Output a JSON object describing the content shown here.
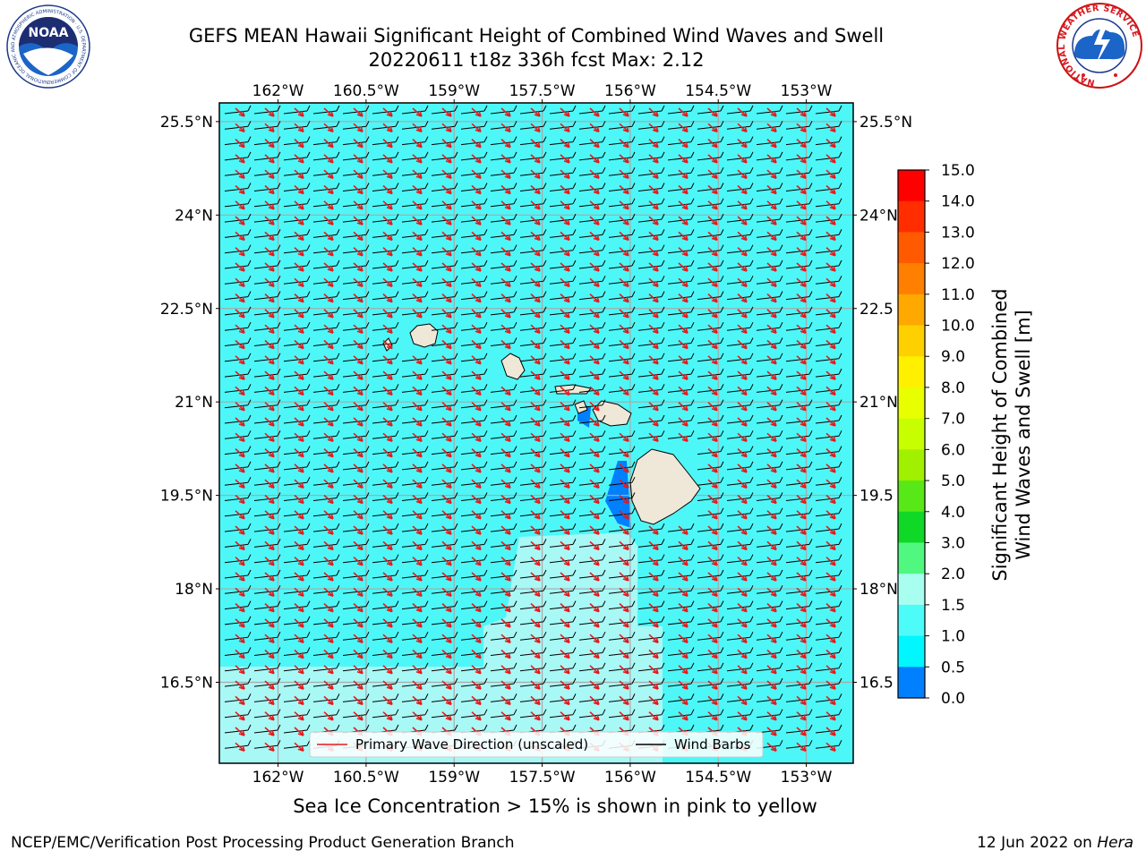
{
  "title": {
    "line1": "GEFS MEAN Hawaii Significant Height of Combined Wind Waves and Swell",
    "line2": "20220611 t18z 336h fcst   Max: 2.12"
  },
  "map": {
    "lon_ticks": [
      "162°W",
      "160.5°W",
      "159°W",
      "157.5°W",
      "156°W",
      "154.5°W",
      "153°W"
    ],
    "lat_ticks": [
      "25.5°N",
      "24°N",
      "22.5°N",
      "21°N",
      "19.5°N",
      "18°N",
      "16.5°N"
    ],
    "lat_ticks_right": [
      "25.5°N",
      "24°N",
      "22.5",
      "21°N",
      "19.5",
      "18°N",
      "16.5"
    ],
    "lon_range": [
      -163,
      -152.2
    ],
    "lat_range": [
      15.2,
      25.8
    ],
    "colors": {
      "ocean_fill": "#4df7f7",
      "calm_fill": "#a8f8f6",
      "land": "#efe8d8",
      "wave_direction": "#e41a1c",
      "wind_barb": "#000000",
      "gridline": "#a9a9a9"
    }
  },
  "legend": {
    "wave_label": "Primary Wave Direction (unscaled)",
    "barb_label": "Wind Barbs"
  },
  "colorbar": {
    "label_line1": "Significant Height of Combined",
    "label_line2": "Wind Waves and Swell [m]",
    "ticks": [
      "15.0",
      "14.0",
      "13.0",
      "12.0",
      "11.0",
      "10.0",
      "9.0",
      "8.0",
      "7.0",
      "6.0",
      "5.0",
      "4.0",
      "3.0",
      "2.0",
      "1.5",
      "1.0",
      "0.5",
      "0.0"
    ],
    "colors": [
      "#ff0000",
      "#ff2d00",
      "#ff5a00",
      "#ff8000",
      "#ffa800",
      "#ffd000",
      "#fff000",
      "#e8ff00",
      "#c8ff00",
      "#a0f000",
      "#58e818",
      "#10d826",
      "#50f880",
      "#a8fff0",
      "#4dfcf8",
      "#00f7ff",
      "#0080ff",
      "#0000ff"
    ]
  },
  "logos": {
    "noaa_text": "NOAA",
    "noaa_ring": "NATIONAL OCEANIC AND ATMOSPHERIC ADMINISTRATION · U.S. DEPARTMENT OF COMMERCE",
    "nws_ring": "NATIONAL WEATHER SERVICE"
  },
  "footer": {
    "sea_ice_note": "Sea Ice Concentration > 15% is shown in pink to yellow",
    "credit_left": "NCEP/EMC/Verification Post Processing Product Generation Branch",
    "credit_date": "12 Jun 2022 on ",
    "credit_host": "Hera"
  }
}
